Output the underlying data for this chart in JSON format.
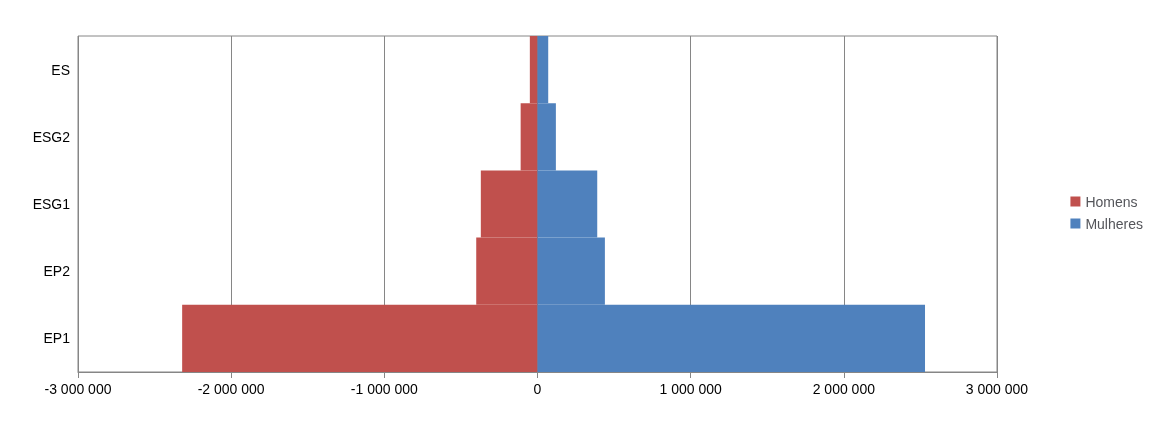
{
  "chart_data": {
    "type": "bar",
    "orientation": "horizontal",
    "stacked": true,
    "categories": [
      "ES",
      "ESG2",
      "ESG1",
      "EP2",
      "EP1"
    ],
    "series": [
      {
        "name": "Homens",
        "color": "#c0504d",
        "values": [
          -50000,
          -110000,
          -370000,
          -400000,
          -2320000
        ]
      },
      {
        "name": "Mulheres",
        "color": "#4f81bd",
        "values": [
          70000,
          120000,
          390000,
          440000,
          2530000
        ]
      }
    ],
    "xlim": [
      -3000000,
      3000000
    ],
    "xticks": [
      -3000000,
      -2000000,
      -1000000,
      0,
      1000000,
      2000000,
      3000000
    ],
    "grid": "x",
    "legend": "right"
  }
}
